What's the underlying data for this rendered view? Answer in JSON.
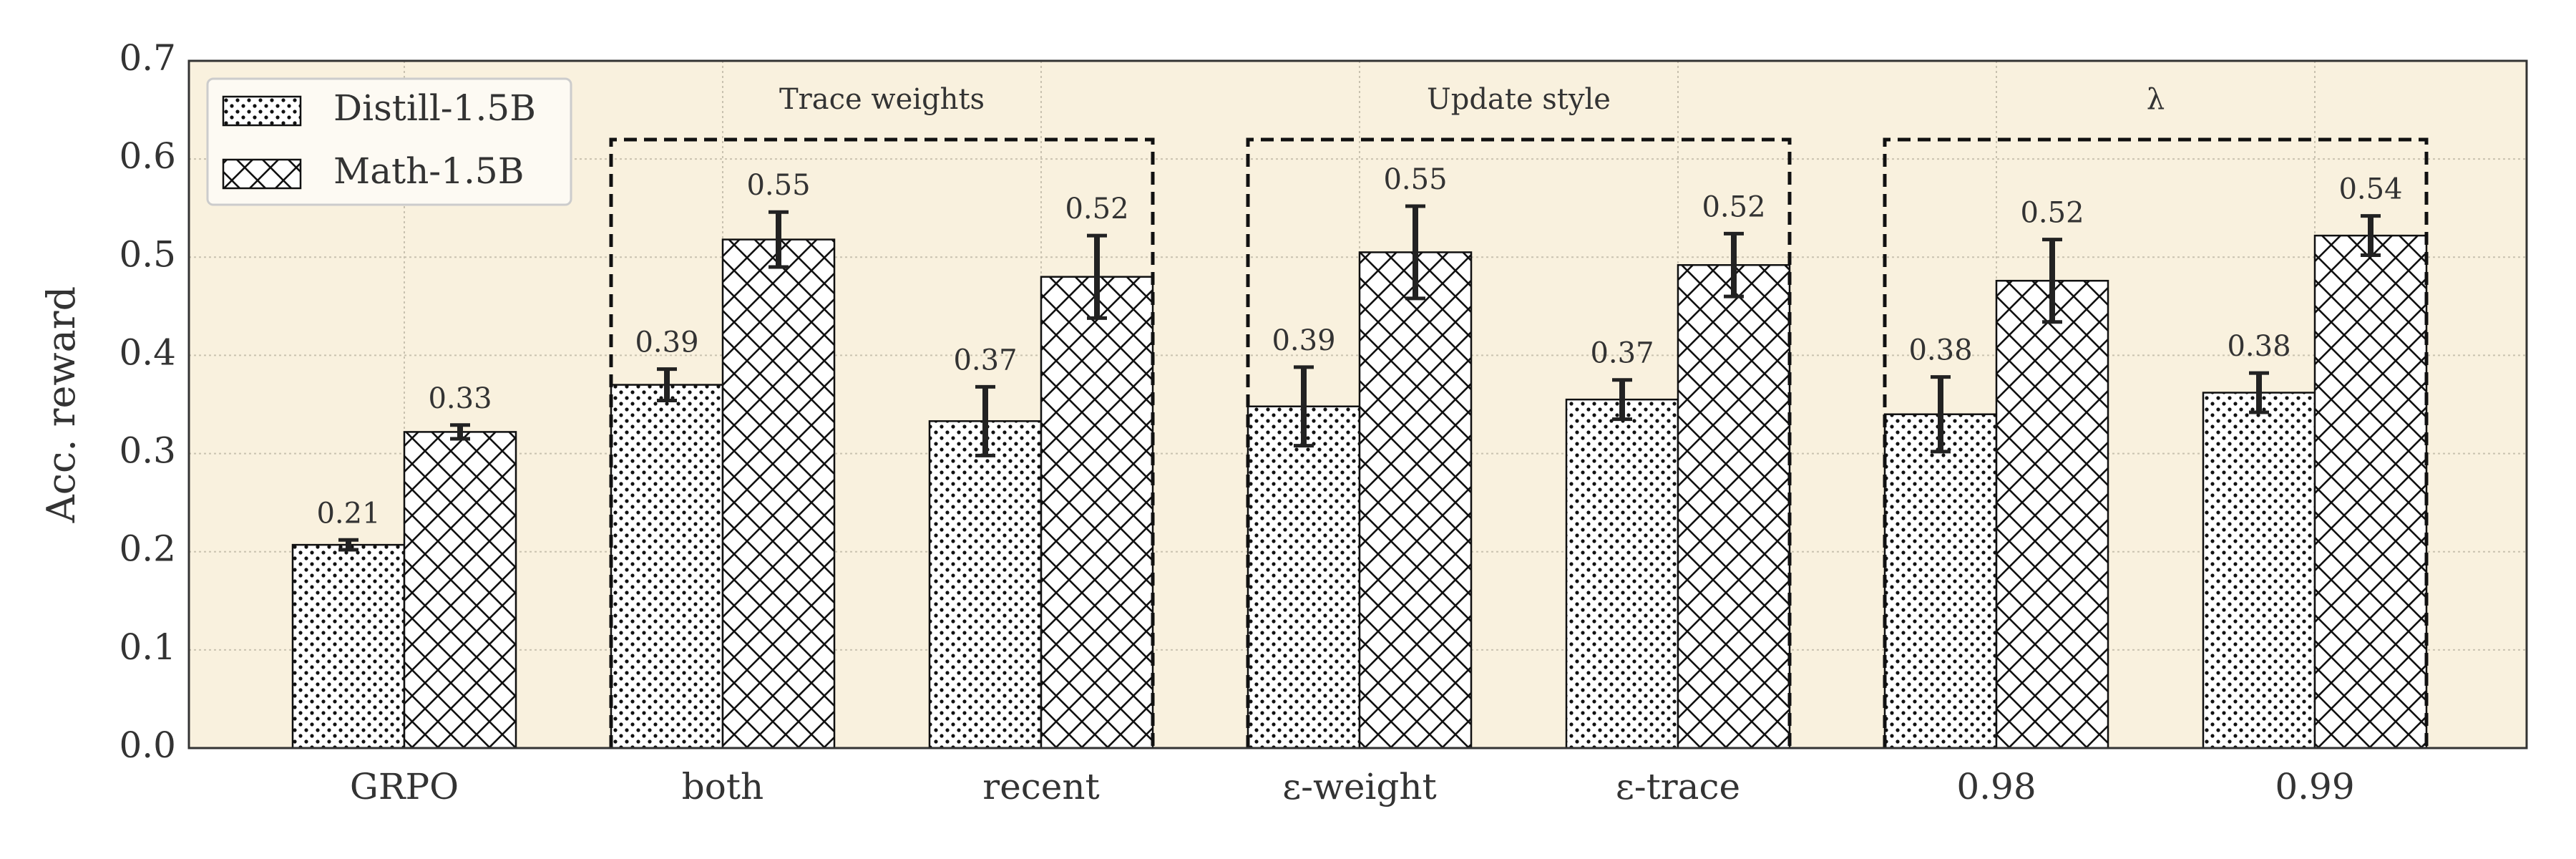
{
  "chart_data": {
    "type": "bar",
    "ylabel": "Acc. reward",
    "categories": [
      "GRPO",
      "both",
      "recent",
      "ε-weight",
      "ε-trace",
      "0.98",
      "0.99"
    ],
    "series": [
      {
        "name": "Distill-1.5B",
        "pattern": "dots",
        "values": [
          0.207,
          0.37,
          0.333,
          0.348,
          0.355,
          0.34,
          0.362
        ],
        "errors": [
          0.005,
          0.016,
          0.035,
          0.04,
          0.02,
          0.038,
          0.02
        ],
        "top_labels": [
          0.21,
          0.39,
          0.37,
          0.39,
          0.37,
          0.38,
          0.38
        ]
      },
      {
        "name": "Math-1.5B",
        "pattern": "crosshatch",
        "values": [
          0.322,
          0.518,
          0.48,
          0.505,
          0.492,
          0.476,
          0.522
        ],
        "errors": [
          0.007,
          0.028,
          0.042,
          0.047,
          0.032,
          0.042,
          0.02
        ],
        "top_labels": [
          0.33,
          0.55,
          0.52,
          0.55,
          0.52,
          0.52,
          0.54
        ]
      }
    ],
    "groups": [
      {
        "label": "Trace weights",
        "span": [
          1,
          2
        ]
      },
      {
        "label": "Update style",
        "span": [
          3,
          4
        ]
      },
      {
        "label": "λ",
        "span": [
          5,
          6
        ]
      }
    ],
    "ylim": [
      0,
      0.7
    ],
    "yticks": [
      {
        "value": 0,
        "label": "0.0"
      },
      0.1,
      0.2,
      0.3,
      0.4,
      0.5,
      0.6,
      0.7
    ],
    "grid": true,
    "legend": "upper left"
  }
}
